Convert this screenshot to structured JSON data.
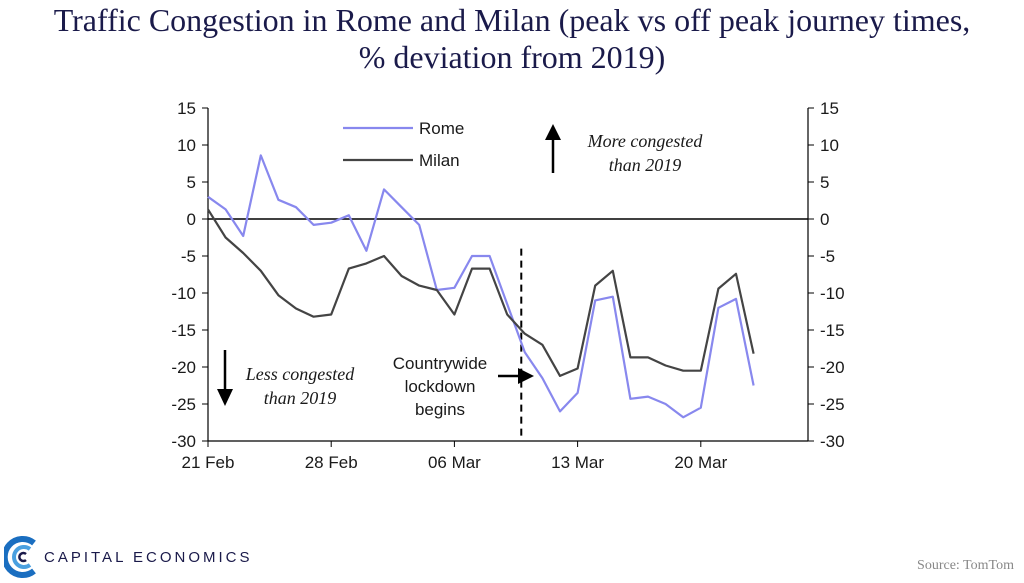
{
  "chart_data": {
    "type": "line",
    "title": [
      "Traffic Congestion in Rome and Milan (peak vs off peak journey times,",
      "% deviation from 2019)"
    ],
    "ylim": [
      -30,
      15
    ],
    "yticks": [
      15,
      10,
      5,
      0,
      -5,
      -10,
      -15,
      -20,
      -25,
      -30
    ],
    "x_count": 34,
    "x_ticks": [
      {
        "index": 0,
        "label": "21 Feb"
      },
      {
        "index": 7,
        "label": "28 Feb"
      },
      {
        "index": 14,
        "label": "06 Mar"
      },
      {
        "index": 21,
        "label": "13 Mar"
      },
      {
        "index": 28,
        "label": "20 Mar"
      }
    ],
    "series": [
      {
        "name": "Rome",
        "color": "#8888ee",
        "values": [
          3,
          1.3,
          -2.3,
          8.6,
          2.6,
          1.6,
          -0.8,
          -0.5,
          0.5,
          -4.3,
          4,
          1.6,
          -0.8,
          -9.6,
          -9.3,
          -5,
          -5,
          -11.5,
          -18,
          -21.5,
          -26,
          -23.5,
          -11,
          -10.5,
          -24.3,
          -24,
          -25,
          -26.8,
          -25.5,
          -12,
          -10.8,
          -22.5
        ]
      },
      {
        "name": "Milan",
        "color": "#444444",
        "values": [
          1.3,
          -2.5,
          -4.6,
          -7,
          -10.3,
          -12.1,
          -13.2,
          -12.9,
          -6.7,
          -6,
          -5,
          -7.7,
          -9,
          -9.6,
          -12.9,
          -6.7,
          -6.7,
          -12.9,
          -15.5,
          -17,
          -21.2,
          -20.2,
          -9,
          -7,
          -18.7,
          -18.7,
          -19.8,
          -20.5,
          -20.5,
          -9.4,
          -7.4,
          -18.2
        ]
      }
    ],
    "lockdown_index": 17.8,
    "annotations": {
      "more_congested": [
        "More congested",
        "than 2019"
      ],
      "less_congested": [
        "Less congested",
        "than 2019"
      ],
      "lockdown": [
        "Countrywide",
        "lockdown",
        "begins"
      ]
    }
  },
  "branding": {
    "logo_text": "CAPITAL ECONOMICS"
  },
  "source": "Source: TomTom"
}
